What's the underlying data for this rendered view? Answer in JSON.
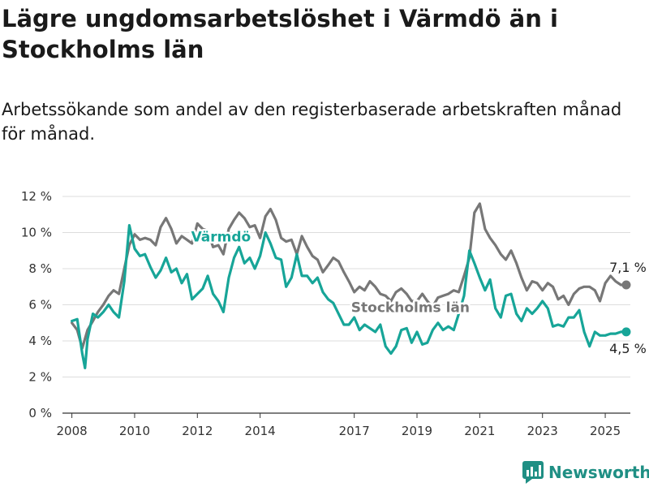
{
  "header": {
    "title": "Lägre ungdomsarbetslöshet i Värmdö än i Stockholms län",
    "subtitle": "Arbetssökande som andel av den registerbaserade arbetskraften månad för månad."
  },
  "branding": {
    "name": "Newsworthy",
    "icon": "bar-chart-logo-icon",
    "color": "#1f8f84"
  },
  "chart_data": {
    "type": "line",
    "x_unit": "year",
    "xlim": [
      2007.7,
      2025.8
    ],
    "ylim": [
      0,
      12
    ],
    "y_ticks": [
      0,
      2,
      4,
      6,
      8,
      10,
      12
    ],
    "y_tick_labels": [
      "0 %",
      "2 %",
      "4 %",
      "6 %",
      "8 %",
      "10 %",
      "12 %"
    ],
    "x_ticks": [
      2008,
      2010,
      2012,
      2014,
      2017,
      2019,
      2021,
      2023,
      2025
    ],
    "x_tick_labels": [
      "2008",
      "2010",
      "2012",
      "2014",
      "2017",
      "2019",
      "2021",
      "2023",
      "2025"
    ],
    "grid": "horizontal",
    "series": [
      {
        "name": "Stockholms län",
        "color": "#777777",
        "end_label": "7,1 %",
        "points": [
          [
            2008.0,
            5.0
          ],
          [
            2008.17,
            4.6
          ],
          [
            2008.33,
            3.6
          ],
          [
            2008.5,
            4.6
          ],
          [
            2008.67,
            5.1
          ],
          [
            2008.83,
            5.6
          ],
          [
            2009.0,
            6.0
          ],
          [
            2009.17,
            6.5
          ],
          [
            2009.33,
            6.8
          ],
          [
            2009.5,
            6.6
          ],
          [
            2009.67,
            8.0
          ],
          [
            2009.83,
            9.3
          ],
          [
            2010.0,
            9.9
          ],
          [
            2010.17,
            9.6
          ],
          [
            2010.33,
            9.7
          ],
          [
            2010.5,
            9.6
          ],
          [
            2010.67,
            9.3
          ],
          [
            2010.83,
            10.3
          ],
          [
            2011.0,
            10.8
          ],
          [
            2011.17,
            10.2
          ],
          [
            2011.33,
            9.4
          ],
          [
            2011.5,
            9.8
          ],
          [
            2011.67,
            9.6
          ],
          [
            2011.83,
            9.4
          ],
          [
            2012.0,
            10.5
          ],
          [
            2012.17,
            10.2
          ],
          [
            2012.33,
            10.1
          ],
          [
            2012.5,
            9.2
          ],
          [
            2012.67,
            9.3
          ],
          [
            2012.83,
            8.8
          ],
          [
            2013.0,
            10.2
          ],
          [
            2013.17,
            10.7
          ],
          [
            2013.33,
            11.1
          ],
          [
            2013.5,
            10.8
          ],
          [
            2013.67,
            10.3
          ],
          [
            2013.83,
            10.4
          ],
          [
            2014.0,
            9.7
          ],
          [
            2014.17,
            10.9
          ],
          [
            2014.33,
            11.3
          ],
          [
            2014.5,
            10.7
          ],
          [
            2014.67,
            9.7
          ],
          [
            2014.83,
            9.5
          ],
          [
            2015.0,
            9.6
          ],
          [
            2015.17,
            8.8
          ],
          [
            2015.33,
            9.8
          ],
          [
            2015.5,
            9.2
          ],
          [
            2015.67,
            8.7
          ],
          [
            2015.83,
            8.5
          ],
          [
            2016.0,
            7.8
          ],
          [
            2016.17,
            8.2
          ],
          [
            2016.33,
            8.6
          ],
          [
            2016.5,
            8.4
          ],
          [
            2016.67,
            7.8
          ],
          [
            2016.83,
            7.3
          ],
          [
            2017.0,
            6.7
          ],
          [
            2017.17,
            7.0
          ],
          [
            2017.33,
            6.8
          ],
          [
            2017.5,
            7.3
          ],
          [
            2017.67,
            7.0
          ],
          [
            2017.83,
            6.6
          ],
          [
            2018.0,
            6.5
          ],
          [
            2018.17,
            6.2
          ],
          [
            2018.33,
            6.7
          ],
          [
            2018.5,
            6.9
          ],
          [
            2018.67,
            6.6
          ],
          [
            2018.83,
            6.2
          ],
          [
            2019.0,
            6.2
          ],
          [
            2019.17,
            6.6
          ],
          [
            2019.33,
            6.2
          ],
          [
            2019.5,
            5.9
          ],
          [
            2019.67,
            6.4
          ],
          [
            2019.83,
            6.5
          ],
          [
            2020.0,
            6.6
          ],
          [
            2020.17,
            6.8
          ],
          [
            2020.33,
            6.7
          ],
          [
            2020.5,
            7.6
          ],
          [
            2020.67,
            8.6
          ],
          [
            2020.83,
            11.1
          ],
          [
            2021.0,
            11.6
          ],
          [
            2021.17,
            10.2
          ],
          [
            2021.33,
            9.7
          ],
          [
            2021.5,
            9.3
          ],
          [
            2021.67,
            8.8
          ],
          [
            2021.83,
            8.5
          ],
          [
            2022.0,
            9.0
          ],
          [
            2022.17,
            8.3
          ],
          [
            2022.33,
            7.5
          ],
          [
            2022.5,
            6.8
          ],
          [
            2022.67,
            7.3
          ],
          [
            2022.83,
            7.2
          ],
          [
            2023.0,
            6.8
          ],
          [
            2023.17,
            7.2
          ],
          [
            2023.33,
            7.0
          ],
          [
            2023.5,
            6.3
          ],
          [
            2023.67,
            6.5
          ],
          [
            2023.83,
            6.0
          ],
          [
            2024.0,
            6.6
          ],
          [
            2024.17,
            6.9
          ],
          [
            2024.33,
            7.0
          ],
          [
            2024.5,
            7.0
          ],
          [
            2024.67,
            6.8
          ],
          [
            2024.83,
            6.2
          ],
          [
            2025.0,
            7.2
          ],
          [
            2025.17,
            7.6
          ],
          [
            2025.33,
            7.3
          ],
          [
            2025.5,
            7.1
          ],
          [
            2025.67,
            7.1
          ]
        ]
      },
      {
        "name": "Värmdö",
        "color": "#17a598",
        "end_label": "4,5 %",
        "points": [
          [
            2008.0,
            5.1
          ],
          [
            2008.17,
            5.2
          ],
          [
            2008.33,
            3.3
          ],
          [
            2008.42,
            2.5
          ],
          [
            2008.5,
            4.1
          ],
          [
            2008.67,
            5.5
          ],
          [
            2008.83,
            5.3
          ],
          [
            2009.0,
            5.6
          ],
          [
            2009.17,
            6.0
          ],
          [
            2009.33,
            5.6
          ],
          [
            2009.5,
            5.3
          ],
          [
            2009.67,
            7.3
          ],
          [
            2009.83,
            10.4
          ],
          [
            2010.0,
            9.1
          ],
          [
            2010.17,
            8.7
          ],
          [
            2010.33,
            8.8
          ],
          [
            2010.5,
            8.1
          ],
          [
            2010.67,
            7.5
          ],
          [
            2010.83,
            7.9
          ],
          [
            2011.0,
            8.6
          ],
          [
            2011.17,
            7.8
          ],
          [
            2011.33,
            8.0
          ],
          [
            2011.5,
            7.2
          ],
          [
            2011.67,
            7.7
          ],
          [
            2011.83,
            6.3
          ],
          [
            2012.0,
            6.6
          ],
          [
            2012.17,
            6.9
          ],
          [
            2012.33,
            7.6
          ],
          [
            2012.5,
            6.6
          ],
          [
            2012.67,
            6.2
          ],
          [
            2012.83,
            5.6
          ],
          [
            2013.0,
            7.5
          ],
          [
            2013.17,
            8.6
          ],
          [
            2013.33,
            9.2
          ],
          [
            2013.5,
            8.3
          ],
          [
            2013.67,
            8.6
          ],
          [
            2013.83,
            8.0
          ],
          [
            2014.0,
            8.7
          ],
          [
            2014.17,
            10.0
          ],
          [
            2014.33,
            9.4
          ],
          [
            2014.5,
            8.6
          ],
          [
            2014.67,
            8.5
          ],
          [
            2014.83,
            7.0
          ],
          [
            2015.0,
            7.5
          ],
          [
            2015.17,
            8.8
          ],
          [
            2015.33,
            7.6
          ],
          [
            2015.5,
            7.6
          ],
          [
            2015.67,
            7.2
          ],
          [
            2015.83,
            7.5
          ],
          [
            2016.0,
            6.7
          ],
          [
            2016.17,
            6.3
          ],
          [
            2016.33,
            6.1
          ],
          [
            2016.5,
            5.5
          ],
          [
            2016.67,
            4.9
          ],
          [
            2016.83,
            4.9
          ],
          [
            2017.0,
            5.3
          ],
          [
            2017.17,
            4.6
          ],
          [
            2017.33,
            4.9
          ],
          [
            2017.5,
            4.7
          ],
          [
            2017.67,
            4.5
          ],
          [
            2017.83,
            4.9
          ],
          [
            2018.0,
            3.7
          ],
          [
            2018.17,
            3.3
          ],
          [
            2018.33,
            3.7
          ],
          [
            2018.5,
            4.6
          ],
          [
            2018.67,
            4.7
          ],
          [
            2018.83,
            3.9
          ],
          [
            2019.0,
            4.5
          ],
          [
            2019.17,
            3.8
          ],
          [
            2019.33,
            3.9
          ],
          [
            2019.5,
            4.6
          ],
          [
            2019.67,
            5.0
          ],
          [
            2019.83,
            4.6
          ],
          [
            2020.0,
            4.8
          ],
          [
            2020.17,
            4.6
          ],
          [
            2020.33,
            5.5
          ],
          [
            2020.5,
            6.5
          ],
          [
            2020.67,
            9.0
          ],
          [
            2020.83,
            8.3
          ],
          [
            2021.0,
            7.5
          ],
          [
            2021.17,
            6.8
          ],
          [
            2021.33,
            7.4
          ],
          [
            2021.5,
            5.8
          ],
          [
            2021.67,
            5.3
          ],
          [
            2021.83,
            6.5
          ],
          [
            2022.0,
            6.6
          ],
          [
            2022.17,
            5.5
          ],
          [
            2022.33,
            5.1
          ],
          [
            2022.5,
            5.8
          ],
          [
            2022.67,
            5.5
          ],
          [
            2022.83,
            5.8
          ],
          [
            2023.0,
            6.2
          ],
          [
            2023.17,
            5.8
          ],
          [
            2023.33,
            4.8
          ],
          [
            2023.5,
            4.9
          ],
          [
            2023.67,
            4.8
          ],
          [
            2023.83,
            5.3
          ],
          [
            2024.0,
            5.3
          ],
          [
            2024.17,
            5.7
          ],
          [
            2024.33,
            4.5
          ],
          [
            2024.5,
            3.7
          ],
          [
            2024.67,
            4.5
          ],
          [
            2024.83,
            4.3
          ],
          [
            2025.0,
            4.3
          ],
          [
            2025.17,
            4.4
          ],
          [
            2025.33,
            4.4
          ],
          [
            2025.5,
            4.5
          ],
          [
            2025.67,
            4.5
          ]
        ]
      }
    ]
  }
}
